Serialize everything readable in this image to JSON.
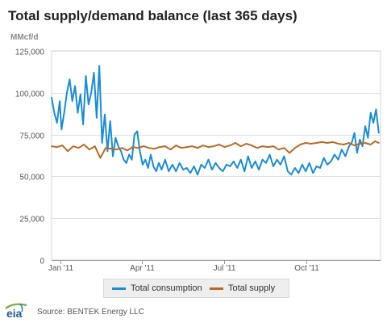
{
  "header": {
    "title": "Total supply/demand balance (last 365 days)",
    "unit": "MMcf/d"
  },
  "footer": {
    "source": "Source: BENTEK Energy LLC",
    "logo_text": "eia"
  },
  "colors": {
    "consumption": "#1f8ccb",
    "supply": "#b56a2a",
    "axis": "#999999"
  },
  "chart_data": {
    "type": "line",
    "title": "Total supply/demand balance (last 365 days)",
    "ylabel": "MMcf/d",
    "xlabel": "",
    "ylim": [
      0,
      125000
    ],
    "yticks": [
      0,
      25000,
      50000,
      75000,
      100000,
      125000
    ],
    "ytick_labels": [
      "0",
      "25,000",
      "50,000",
      "75,000",
      "100,000",
      "125,000"
    ],
    "xlim": [
      "2010-12-22",
      "2011-12-22"
    ],
    "xticks": [
      "2011-01-01",
      "2011-04-01",
      "2011-07-01",
      "2011-10-01"
    ],
    "xtick_labels": [
      "Jan '11",
      "Apr '11",
      "Jul '11",
      "Oct '11"
    ],
    "grid": true,
    "legend_position": "bottom",
    "series": [
      {
        "name": "Total consumption",
        "color": "#1f8ccb",
        "x": [
          "2010-12-22",
          "2010-12-25",
          "2010-12-28",
          "2010-12-31",
          "2011-01-02",
          "2011-01-05",
          "2011-01-08",
          "2011-01-11",
          "2011-01-14",
          "2011-01-17",
          "2011-01-20",
          "2011-01-23",
          "2011-01-26",
          "2011-01-29",
          "2011-02-01",
          "2011-02-04",
          "2011-02-07",
          "2011-02-10",
          "2011-02-13",
          "2011-02-16",
          "2011-02-19",
          "2011-02-22",
          "2011-02-25",
          "2011-02-28",
          "2011-03-03",
          "2011-03-06",
          "2011-03-09",
          "2011-03-12",
          "2011-03-15",
          "2011-03-18",
          "2011-03-21",
          "2011-03-24",
          "2011-03-27",
          "2011-03-30",
          "2011-04-02",
          "2011-04-05",
          "2011-04-08",
          "2011-04-11",
          "2011-04-14",
          "2011-04-17",
          "2011-04-20",
          "2011-04-23",
          "2011-04-27",
          "2011-05-01",
          "2011-05-05",
          "2011-05-09",
          "2011-05-13",
          "2011-05-17",
          "2011-05-21",
          "2011-05-25",
          "2011-05-29",
          "2011-06-02",
          "2011-06-06",
          "2011-06-10",
          "2011-06-14",
          "2011-06-18",
          "2011-06-22",
          "2011-06-26",
          "2011-06-30",
          "2011-07-04",
          "2011-07-08",
          "2011-07-12",
          "2011-07-16",
          "2011-07-20",
          "2011-07-24",
          "2011-07-28",
          "2011-08-01",
          "2011-08-05",
          "2011-08-09",
          "2011-08-13",
          "2011-08-17",
          "2011-08-21",
          "2011-08-25",
          "2011-08-29",
          "2011-09-02",
          "2011-09-06",
          "2011-09-10",
          "2011-09-14",
          "2011-09-18",
          "2011-09-22",
          "2011-09-26",
          "2011-09-30",
          "2011-10-04",
          "2011-10-08",
          "2011-10-12",
          "2011-10-16",
          "2011-10-20",
          "2011-10-24",
          "2011-10-28",
          "2011-11-01",
          "2011-11-05",
          "2011-11-09",
          "2011-11-13",
          "2011-11-17",
          "2011-11-20",
          "2011-11-23",
          "2011-11-26",
          "2011-11-29",
          "2011-12-02",
          "2011-12-05",
          "2011-12-08",
          "2011-12-11",
          "2011-12-14",
          "2011-12-17",
          "2011-12-20"
        ],
        "y": [
          97000,
          88000,
          82000,
          95000,
          78000,
          88000,
          100000,
          108000,
          95000,
          104000,
          88000,
          99000,
          81000,
          110000,
          93000,
          100000,
          112000,
          85000,
          116000,
          70000,
          87000,
          65000,
          83000,
          62000,
          73000,
          68000,
          65000,
          60000,
          58000,
          63000,
          60000,
          75000,
          77000,
          65000,
          57000,
          60000,
          55000,
          63000,
          56000,
          53000,
          58000,
          54000,
          60000,
          53000,
          57000,
          53000,
          58000,
          54000,
          55000,
          52000,
          56000,
          51000,
          57000,
          55000,
          60000,
          54000,
          58000,
          55000,
          53000,
          57000,
          56000,
          59000,
          55000,
          60000,
          53000,
          62000,
          55000,
          59000,
          54000,
          60000,
          58000,
          63000,
          56000,
          60000,
          57000,
          62000,
          53000,
          51000,
          55000,
          52000,
          57000,
          53000,
          58000,
          52000,
          56000,
          55000,
          61000,
          57000,
          59000,
          63000,
          60000,
          66000,
          62000,
          68000,
          70000,
          76000,
          64000,
          72000,
          68000,
          80000,
          73000,
          88000,
          82000,
          90000,
          76000
        ]
      },
      {
        "name": "Total supply",
        "color": "#b56a2a",
        "x": [
          "2010-12-22",
          "2010-12-28",
          "2011-01-03",
          "2011-01-09",
          "2011-01-15",
          "2011-01-21",
          "2011-01-27",
          "2011-02-02",
          "2011-02-08",
          "2011-02-14",
          "2011-02-20",
          "2011-02-26",
          "2011-03-04",
          "2011-03-10",
          "2011-03-16",
          "2011-03-22",
          "2011-03-28",
          "2011-04-03",
          "2011-04-09",
          "2011-04-15",
          "2011-04-21",
          "2011-04-27",
          "2011-05-03",
          "2011-05-09",
          "2011-05-15",
          "2011-05-21",
          "2011-05-27",
          "2011-06-02",
          "2011-06-08",
          "2011-06-14",
          "2011-06-20",
          "2011-06-26",
          "2011-07-02",
          "2011-07-08",
          "2011-07-14",
          "2011-07-20",
          "2011-07-26",
          "2011-08-01",
          "2011-08-07",
          "2011-08-13",
          "2011-08-19",
          "2011-08-25",
          "2011-08-31",
          "2011-09-06",
          "2011-09-12",
          "2011-09-18",
          "2011-09-24",
          "2011-09-30",
          "2011-10-06",
          "2011-10-12",
          "2011-10-18",
          "2011-10-24",
          "2011-10-30",
          "2011-11-05",
          "2011-11-11",
          "2011-11-17",
          "2011-11-23",
          "2011-11-29",
          "2011-12-05",
          "2011-12-11",
          "2011-12-16",
          "2011-12-20"
        ],
        "y": [
          68000,
          67500,
          68500,
          65000,
          68000,
          67000,
          69000,
          66000,
          68000,
          61000,
          67000,
          66500,
          66000,
          67000,
          65500,
          67500,
          67000,
          68000,
          67000,
          66500,
          67500,
          68000,
          66000,
          68500,
          67000,
          67500,
          68000,
          67000,
          68500,
          67500,
          68000,
          69000,
          67500,
          68500,
          70000,
          68000,
          69500,
          68500,
          67000,
          68000,
          67500,
          68000,
          66000,
          67000,
          64000,
          67000,
          69000,
          70000,
          69500,
          70000,
          70500,
          70000,
          70500,
          69500,
          69000,
          70000,
          68500,
          69500,
          70000,
          69000,
          71000,
          70000
        ]
      }
    ]
  },
  "legend": {
    "items": [
      {
        "label": "Total consumption"
      },
      {
        "label": "Total supply"
      }
    ]
  }
}
